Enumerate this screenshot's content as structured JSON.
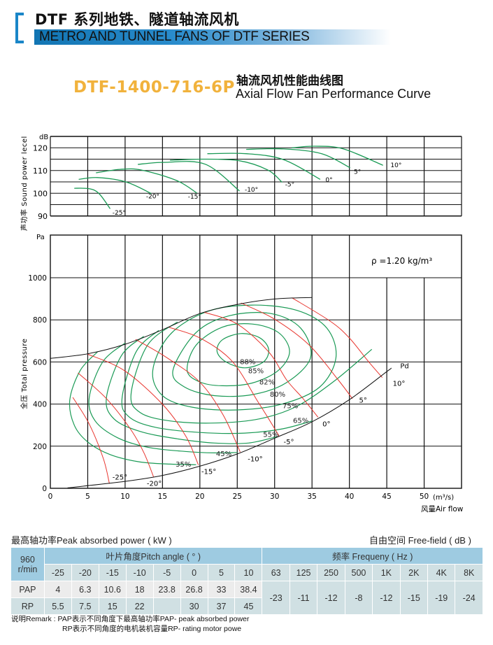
{
  "header": {
    "title_cn": "DTF 系列地铁、隧道轴流风机",
    "title_en": "METRO AND TUNNEL FANS OF DTF SERIES",
    "accent_color": "#1a86c8"
  },
  "model": {
    "code": "DTF-1400-716-6P",
    "code_color": "#f1b23c",
    "title_cn": "轴流风机性能曲线图",
    "title_en": "Axial Flow Fan Performance Curve"
  },
  "chart_data": [
    {
      "type": "line",
      "ylabel": "声功率 Sound power lecel",
      "yunit": "dB",
      "yticks": [
        "120",
        "110",
        "100",
        "90"
      ],
      "ylim": [
        90,
        125
      ],
      "xlim": [
        0,
        55
      ],
      "grid": true,
      "line_color": "#1a9a55",
      "series": [
        {
          "name": "-25°",
          "points": [
            [
              3.2,
              102.2
            ],
            [
              5.2,
              102
            ],
            [
              6.5,
              99.9
            ],
            [
              8,
              93.2
            ]
          ]
        },
        {
          "name": "-20°",
          "points": [
            [
              3.8,
              106.1
            ],
            [
              6.3,
              106.9
            ],
            [
              10.1,
              105
            ],
            [
              13.5,
              99.9
            ]
          ]
        },
        {
          "name": "-15°",
          "points": [
            [
              6.1,
              109
            ],
            [
              9.3,
              110.5
            ],
            [
              12.2,
              110.2
            ],
            [
              16.9,
              105.6
            ],
            [
              19.6,
              100.1
            ]
          ]
        },
        {
          "name": "-10°",
          "points": [
            [
              11.7,
              112.7
            ],
            [
              15.2,
              113.6
            ],
            [
              20.7,
              112.8
            ],
            [
              25.3,
              101
            ]
          ]
        },
        {
          "name": "-5°",
          "points": [
            [
              16,
              114.5
            ],
            [
              20.3,
              115
            ],
            [
              25.3,
              114.3
            ],
            [
              29.1,
              110.2
            ],
            [
              31,
              104.8
            ]
          ]
        },
        {
          "name": "0°",
          "points": [
            [
              21,
              117.4
            ],
            [
              26.2,
              117.4
            ],
            [
              31.2,
              114.8
            ],
            [
              36.1,
              106.1
            ]
          ]
        },
        {
          "name": "5°",
          "points": [
            [
              26.2,
              119.3
            ],
            [
              31.2,
              119.5
            ],
            [
              36.3,
              117.4
            ],
            [
              40.1,
              111.2
            ]
          ]
        },
        {
          "name": "10°",
          "points": [
            [
              32.3,
              120
            ],
            [
              35.4,
              120.7
            ],
            [
              39.2,
              119.5
            ],
            [
              44.5,
              112.3
            ]
          ]
        }
      ]
    },
    {
      "type": "line",
      "ylabel": "全压 Total pressure",
      "yunit": "Pa",
      "xlabel": "风量Air flow",
      "xunit": "(m³/s)",
      "xticks": [
        "0",
        "5",
        "10",
        "15",
        "20",
        "25",
        "30",
        "35",
        "40",
        "45",
        "50"
      ],
      "yticks": [
        "0",
        "200",
        "400",
        "600",
        "800",
        "1000"
      ],
      "xlim": [
        0,
        55
      ],
      "ylim": [
        0,
        1200
      ],
      "grid": true,
      "density_note": "ρ =1.20 kg/m³",
      "envelope": {
        "color": "#111111",
        "points": [
          [
            0,
            617
          ],
          [
            5,
            639
          ],
          [
            10,
            684
          ],
          [
            15,
            753
          ],
          [
            20,
            830
          ],
          [
            25,
            873
          ],
          [
            30,
            899
          ],
          [
            35,
            906
          ]
        ]
      },
      "pd_line": {
        "name": "Pd",
        "color": "#111111",
        "points": [
          [
            2.3,
            2
          ],
          [
            10,
            33
          ],
          [
            15,
            61
          ],
          [
            20,
            105
          ],
          [
            25,
            163
          ],
          [
            30,
            238
          ],
          [
            35,
            316
          ],
          [
            40,
            421
          ],
          [
            45,
            554
          ],
          [
            45.6,
            570
          ]
        ]
      },
      "angle_lines": {
        "color": "#e8352e",
        "series": [
          {
            "name": "-25°",
            "points": [
              [
                3,
                432
              ],
              [
                5.2,
                305
              ],
              [
                7.1,
                140
              ],
              [
                7.9,
                22
              ]
            ]
          },
          {
            "name": "-20°",
            "points": [
              [
                3.7,
                548
              ],
              [
                7.5,
                426
              ],
              [
                10.7,
                282
              ],
              [
                12.5,
                170
              ],
              [
                13.8,
                55
              ]
            ]
          },
          {
            "name": "-15°",
            "points": [
              [
                5,
                637
              ],
              [
                9.9,
                559
              ],
              [
                15,
                399
              ],
              [
                18.1,
                249
              ],
              [
                19.8,
                111
              ]
            ]
          },
          {
            "name": "-10°",
            "points": [
              [
                11.4,
                707
              ],
              [
                15.6,
                620
              ],
              [
                20,
                504
              ],
              [
                23.1,
                349
              ],
              [
                25.4,
                172
              ]
            ]
          },
          {
            "name": "-5°",
            "points": [
              [
                15.9,
                764
              ],
              [
                20,
                714
              ],
              [
                24.3,
                604
              ],
              [
                27.7,
                415
              ],
              [
                29.2,
                330
              ],
              [
                30.6,
                249
              ]
            ]
          },
          {
            "name": "0°",
            "points": [
              [
                20.6,
                836
              ],
              [
                25,
                780
              ],
              [
                29.2,
                648
              ],
              [
                31.6,
                515
              ],
              [
                33.8,
                426
              ],
              [
                35.8,
                338
              ]
            ]
          },
          {
            "name": "5°",
            "points": [
              [
                25.5,
                880
              ],
              [
                30,
                803
              ],
              [
                34.6,
                681
              ],
              [
                38.5,
                515
              ],
              [
                40.4,
                426
              ]
            ]
          },
          {
            "name": "10°",
            "points": [
              [
                32.3,
                905
              ],
              [
                37.5,
                792
              ],
              [
                40,
                714
              ],
              [
                42.5,
                604
              ],
              [
                44.4,
                526
              ]
            ]
          }
        ]
      },
      "efficiency_contours": {
        "color": "#1a9a55",
        "series": [
          {
            "name": "35%",
            "closed": false,
            "points": [
              [
                6.3,
                648
              ],
              [
                4,
                560
              ],
              [
                2.6,
                420
              ],
              [
                3.2,
                300
              ],
              [
                5,
                220
              ],
              [
                8,
                160
              ],
              [
                12,
                125
              ],
              [
                16,
                115
              ],
              [
                19.5,
                112
              ]
            ]
          },
          {
            "name": "45%",
            "closed": false,
            "points": [
              [
                10,
                690
              ],
              [
                7,
                600
              ],
              [
                5.2,
                430
              ],
              [
                6,
                320
              ],
              [
                9,
                240
              ],
              [
                13,
                195
              ],
              [
                18,
                175
              ],
              [
                22,
                168
              ],
              [
                25,
                170
              ]
            ]
          },
          {
            "name": "55%",
            "closed": false,
            "points": [
              [
                12.5,
                722
              ],
              [
                9.5,
                630
              ],
              [
                7.5,
                430
              ],
              [
                8.5,
                330
              ],
              [
                12,
                270
              ],
              [
                17,
                235
              ],
              [
                22,
                215
              ],
              [
                26.5,
                215
              ],
              [
                30.3,
                245
              ]
            ]
          },
          {
            "name": "65%",
            "closed": false,
            "points": [
              [
                14.5,
                750
              ],
              [
                11.5,
                650
              ],
              [
                9.6,
                430
              ],
              [
                10.5,
                340
              ],
              [
                14,
                290
              ],
              [
                20,
                265
              ],
              [
                26,
                262
              ],
              [
                31,
                282
              ],
              [
                35,
                320
              ]
            ]
          },
          {
            "name": "75%",
            "closed": false,
            "points": [
              [
                17,
                790
              ],
              [
                13,
                680
              ],
              [
                10.8,
                450
              ],
              [
                12,
                360
              ],
              [
                16,
                320
              ],
              [
                22,
                310
              ],
              [
                28,
                330
              ],
              [
                33,
                390
              ],
              [
                38,
                510
              ],
              [
                43,
                660
              ]
            ]
          },
          {
            "name": "80%",
            "closed": true,
            "points": [
              [
                13.7,
                560
              ],
              [
                15,
                440
              ],
              [
                19,
                385
              ],
              [
                25,
                372
              ],
              [
                31,
                400
              ],
              [
                36,
                480
              ],
              [
                38.2,
                620
              ],
              [
                37,
                760
              ],
              [
                33,
                845
              ],
              [
                27,
                870
              ],
              [
                21,
                840
              ],
              [
                16,
                730
              ]
            ]
          },
          {
            "name": "82%",
            "closed": true,
            "points": [
              [
                16.4,
                560
              ],
              [
                18,
                480
              ],
              [
                22,
                440
              ],
              [
                27,
                445
              ],
              [
                31.5,
                500
              ],
              [
                34.8,
                620
              ],
              [
                33.5,
                760
              ],
              [
                29.5,
                830
              ],
              [
                24,
                820
              ],
              [
                19.5,
                740
              ]
            ]
          },
          {
            "name": "85%",
            "closed": true,
            "points": [
              [
                18.3,
                560
              ],
              [
                20,
                505
              ],
              [
                23,
                487
              ],
              [
                27,
                500
              ],
              [
                30.5,
                560
              ],
              [
                32,
                650
              ],
              [
                30.5,
                740
              ],
              [
                27,
                780
              ],
              [
                23,
                765
              ],
              [
                19.5,
                680
              ]
            ]
          },
          {
            "name": "88%",
            "closed": true,
            "points": [
              [
                22.3,
                650
              ],
              [
                23.5,
                600
              ],
              [
                26,
                572
              ],
              [
                28.5,
                600
              ],
              [
                29.2,
                660
              ],
              [
                28,
                715
              ],
              [
                25.5,
                735
              ],
              [
                23,
                705
              ]
            ]
          }
        ]
      }
    }
  ],
  "table": {
    "left_title": "最高轴功率Peak absorbed power ( kW )",
    "right_title": "自由空间 Free-field ( dB )",
    "speed_value": "960",
    "speed_unit": "r/min",
    "pitch_header": "叶片角度Pitch angle ( ° )",
    "angles": [
      "-25",
      "-20",
      "-15",
      "-10",
      "-5",
      "0",
      "5",
      "10"
    ],
    "pap_label": "PAP",
    "pap": [
      "4",
      "6.3",
      "10.6",
      "18",
      "23.8",
      "26.8",
      "33",
      "38.4"
    ],
    "rp_label": "RP",
    "rp": [
      "5.5",
      "7.5",
      "15",
      "22",
      "",
      "30",
      "37",
      "45"
    ],
    "freq_header": "频率  Frequeny   ( Hz )",
    "freqs": [
      "63",
      "125",
      "250",
      "500",
      "1K",
      "2K",
      "4K",
      "8K"
    ],
    "freq_values": [
      "-23",
      "-11",
      "-12",
      "-8",
      "-12",
      "-15",
      "-19",
      "-24"
    ],
    "header_color": "#9ecbe1",
    "row_color": "#d0e0e3"
  },
  "remarks": {
    "line1": "说明Remark : PAP表示不同角度下最高轴功率PAP- peak absorbed power",
    "line2": "RP表示不同角度的电机装机容量RP- rating motor powe"
  }
}
